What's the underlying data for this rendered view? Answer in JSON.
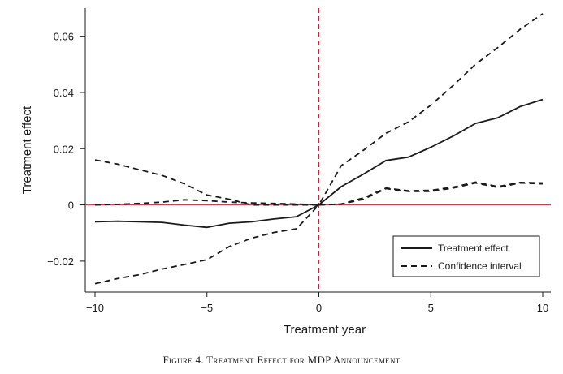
{
  "caption": "Figure 4. Treatment Effect for MDP Announcement",
  "chart_data": {
    "type": "line",
    "title": "",
    "xlabel": "Treatment year",
    "ylabel": "Treatment effect",
    "xlim": [
      -10,
      10
    ],
    "ylim": [
      -0.031,
      0.07
    ],
    "x_ticks": [
      -10,
      -5,
      0,
      5,
      10
    ],
    "x_tick_labels": [
      "−10",
      "−5",
      "0",
      "5",
      "10"
    ],
    "y_ticks": [
      -0.02,
      0,
      0.02,
      0.04,
      0.06
    ],
    "y_tick_labels": [
      "−0.02",
      "0",
      "0.02",
      "0.04",
      "0.06"
    ],
    "grid": false,
    "legend_position": "bottom-right",
    "reference_lines": {
      "horizontal_y": 0,
      "vertical_x": 0,
      "color": "#c0283a"
    },
    "x": [
      -10,
      -9,
      -8,
      -7,
      -6,
      -5,
      -4,
      -3,
      -2,
      -1,
      0,
      1,
      2,
      3,
      4,
      5,
      6,
      7,
      8,
      9,
      10
    ],
    "series": [
      {
        "name": "Treatment effect",
        "style": "solid",
        "color": "#1a1a1a",
        "values": [
          -0.006,
          -0.0058,
          -0.006,
          -0.0062,
          -0.0072,
          -0.008,
          -0.0065,
          -0.006,
          -0.005,
          -0.0042,
          0.0,
          0.0065,
          0.011,
          0.0158,
          0.017,
          0.0205,
          0.0245,
          0.029,
          0.031,
          0.035,
          0.0375
        ]
      },
      {
        "name": "Confidence interval",
        "style": "dashed",
        "color": "#1a1a1a",
        "values": [
          0.016,
          0.0145,
          0.0125,
          0.0105,
          0.0075,
          0.0035,
          0.002,
          0.0,
          0.0,
          0.0,
          0.0,
          0.014,
          0.0195,
          0.0255,
          0.0295,
          0.0355,
          0.0425,
          0.05,
          0.056,
          0.0625,
          0.068
        ]
      },
      {
        "name": "",
        "style": "dashed",
        "color": "#1a1a1a",
        "values": [
          0.0,
          0.0002,
          0.0005,
          0.001,
          0.0018,
          0.0015,
          0.001,
          0.0007,
          0.0005,
          0.0003,
          0.0,
          0.0003,
          0.0025,
          0.006,
          0.005,
          0.0052,
          0.0063,
          0.0081,
          0.0065,
          0.008,
          0.0078
        ]
      },
      {
        "name": "",
        "style": "dashed",
        "color": "#1a1a1a",
        "values": [
          -0.028,
          -0.0262,
          -0.0248,
          -0.0228,
          -0.0212,
          -0.0195,
          -0.0148,
          -0.0118,
          -0.0098,
          -0.0085,
          0.0,
          0.0003,
          0.002,
          0.0058,
          0.0048,
          0.0048,
          0.006,
          0.0078,
          0.0062,
          0.0078,
          0.0075
        ]
      }
    ],
    "legend_entries": [
      "Treatment effect",
      "Confidence interval"
    ]
  }
}
